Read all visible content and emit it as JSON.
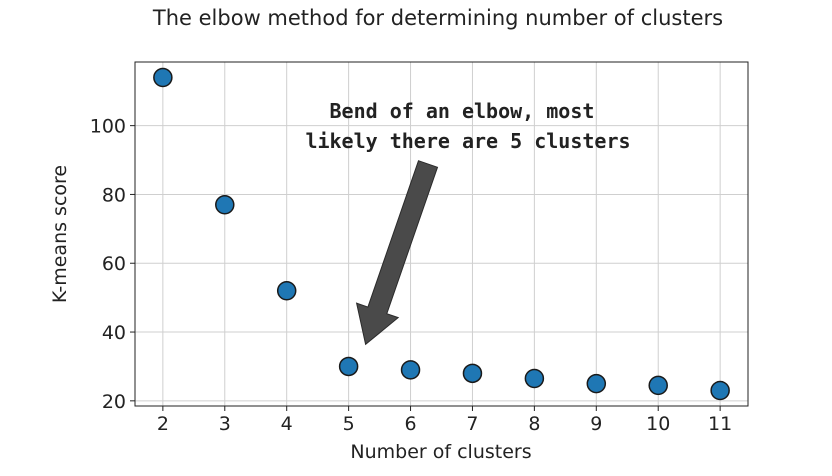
{
  "chart_data": {
    "type": "scatter",
    "title": "The elbow method for determining number of clusters",
    "xlabel": "Number of clusters",
    "ylabel": "K-means score",
    "x": [
      2,
      3,
      4,
      5,
      6,
      7,
      8,
      9,
      10,
      11
    ],
    "y": [
      114,
      77,
      52,
      30,
      29,
      28,
      26.5,
      25,
      24.5,
      23
    ],
    "xticks": [
      "2",
      "3",
      "4",
      "5",
      "6",
      "7",
      "8",
      "9",
      "10",
      "11"
    ],
    "yticks": [
      "20",
      "40",
      "60",
      "80",
      "100"
    ],
    "xlim": [
      1.55,
      11.45
    ],
    "ylim": [
      18.5,
      118.5
    ],
    "grid": true,
    "marker_color": "#1f77b4",
    "marker_edge_color": "#1a1a1a",
    "annotation": {
      "lines": [
        "Bend of an elbow, most",
        "likely there are 5 clusters"
      ],
      "points_to_x": 5,
      "points_to_y": 30,
      "arrow_color": "#4a4a4a"
    }
  }
}
